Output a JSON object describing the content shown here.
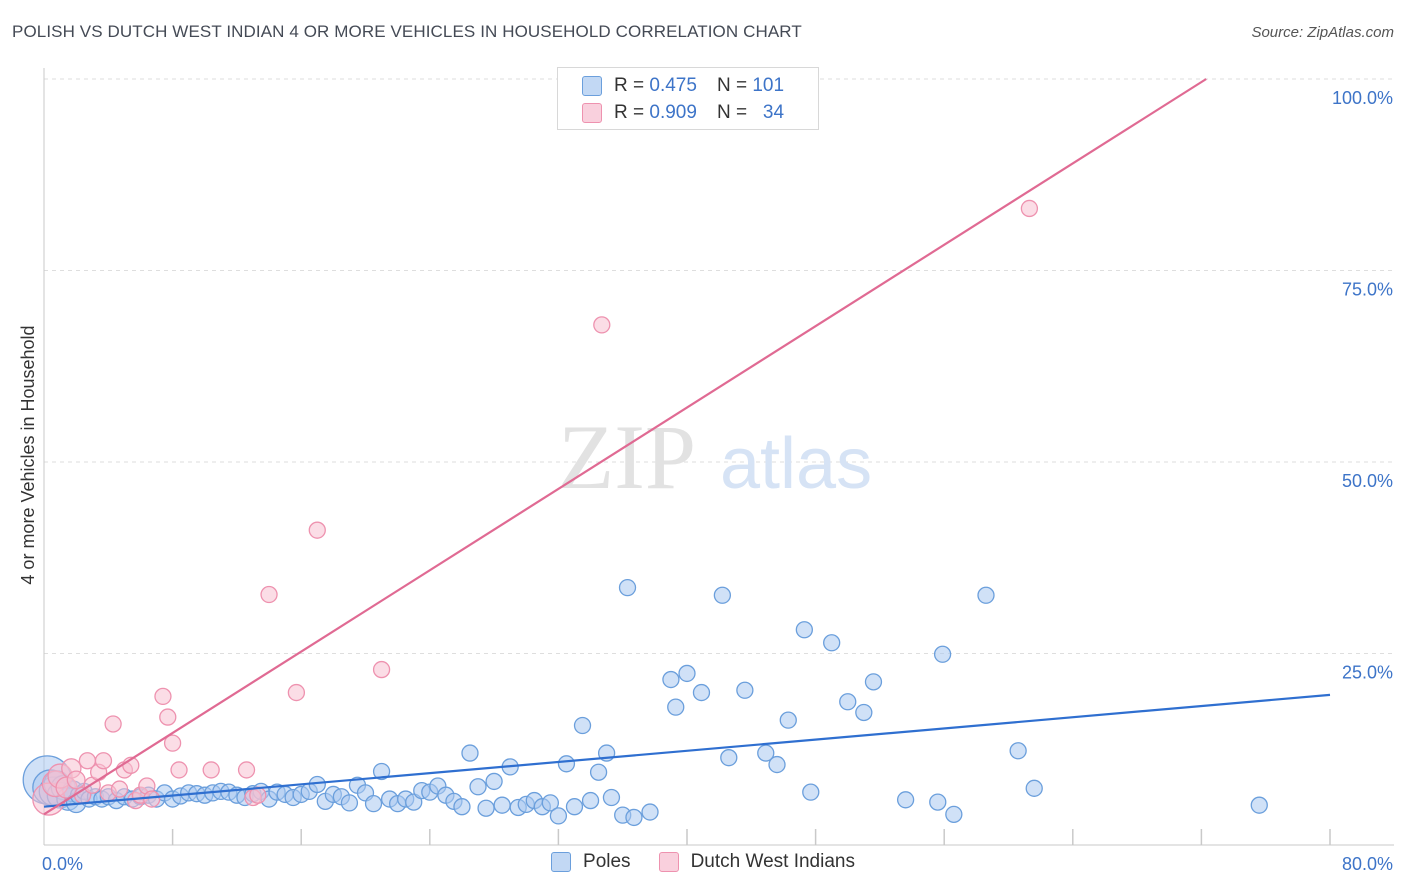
{
  "header": {
    "title": "POLISH VS DUTCH WEST INDIAN 4 OR MORE VEHICLES IN HOUSEHOLD CORRELATION CHART",
    "source": "Source: ZipAtlas.com"
  },
  "watermark": {
    "zip": "ZIP",
    "atlas": "atlas"
  },
  "legend_top": [
    {
      "r_label": "R =",
      "r_value": "0.475",
      "n_label": "N =",
      "n_value": "101"
    },
    {
      "r_label": "R =",
      "r_value": "0.909",
      "n_label": "N =",
      "n_value": "34"
    }
  ],
  "colors": {
    "poles_fill": "#a9c8f0",
    "poles_stroke": "#6b9fdc",
    "poles_line": "#2f6fd0",
    "dwi_fill": "#f8c1d2",
    "dwi_stroke": "#ee92af",
    "dwi_line": "#e06a93",
    "grid": "#dedede",
    "tick_label": "#3d74c8"
  },
  "chart_data": {
    "type": "scatter",
    "title": "POLISH VS DUTCH WEST INDIAN 4 OR MORE VEHICLES IN HOUSEHOLD CORRELATION CHART",
    "xlabel": "",
    "ylabel": "4 or more Vehicles in Household",
    "xlim": [
      0,
      80
    ],
    "ylim": [
      0,
      100
    ],
    "x_tick_labels": [
      "0.0%",
      "80.0%"
    ],
    "y_ticks": [
      25,
      50,
      75,
      100
    ],
    "y_tick_labels": [
      "25.0%",
      "50.0%",
      "75.0%",
      "100.0%"
    ],
    "x_minor_ticks": [
      8,
      16,
      24,
      32,
      40,
      48,
      56,
      64,
      72,
      80
    ],
    "grid": true,
    "legend_position": "bottom",
    "series": [
      {
        "name": "Poles",
        "r": 0.475,
        "n": 101,
        "trend": {
          "x0": 0,
          "y0": 5.0,
          "x1": 80,
          "y1": 19.6
        },
        "points": [
          [
            0.2,
            8.5,
            3
          ],
          [
            0.4,
            7.5,
            2.2
          ],
          [
            0.6,
            7,
            1.8
          ],
          [
            0.8,
            8,
            1.6
          ],
          [
            1.0,
            6.5,
            1.6
          ],
          [
            1.2,
            7.5,
            1.5
          ],
          [
            1.5,
            6.0,
            1.4
          ],
          [
            1.8,
            7.0,
            1.3
          ],
          [
            2.0,
            5.5,
            1.2
          ],
          [
            2.2,
            6.5,
            1.1
          ],
          [
            2.5,
            7.0,
            1
          ],
          [
            2.8,
            6.0,
            1
          ],
          [
            3.2,
            6.3,
            1
          ],
          [
            3.6,
            6.0,
            1
          ],
          [
            4.0,
            6.3,
            1
          ],
          [
            4.5,
            5.8,
            1
          ],
          [
            5.0,
            6.3,
            1
          ],
          [
            5.5,
            6.0,
            1
          ],
          [
            6.0,
            6.3,
            1
          ],
          [
            6.5,
            6.5,
            1
          ],
          [
            7.0,
            6.0,
            1
          ],
          [
            7.5,
            6.8,
            1
          ],
          [
            8.0,
            6.0,
            1
          ],
          [
            8.5,
            6.4,
            1
          ],
          [
            9.0,
            6.8,
            1
          ],
          [
            9.5,
            6.7,
            1
          ],
          [
            10.0,
            6.5,
            1
          ],
          [
            10.5,
            6.8,
            1
          ],
          [
            11.0,
            7.0,
            1
          ],
          [
            11.5,
            6.9,
            1
          ],
          [
            12.0,
            6.5,
            1
          ],
          [
            12.5,
            6.2,
            1
          ],
          [
            13.0,
            6.7,
            1
          ],
          [
            13.5,
            7.0,
            1
          ],
          [
            14.0,
            6.0,
            1
          ],
          [
            14.5,
            6.9,
            1
          ],
          [
            15.0,
            6.6,
            1
          ],
          [
            15.5,
            6.2,
            1
          ],
          [
            16.0,
            6.6,
            1
          ],
          [
            16.5,
            7.0,
            1
          ],
          [
            17.0,
            7.9,
            1
          ],
          [
            17.5,
            5.7,
            1
          ],
          [
            18.0,
            6.6,
            1
          ],
          [
            18.5,
            6.3,
            1
          ],
          [
            19.0,
            5.5,
            1
          ],
          [
            19.5,
            7.8,
            1
          ],
          [
            20.0,
            6.8,
            1
          ],
          [
            20.5,
            5.4,
            1
          ],
          [
            21.0,
            9.6,
            1
          ],
          [
            21.5,
            6.0,
            1
          ],
          [
            22.0,
            5.4,
            1
          ],
          [
            22.5,
            6.0,
            1
          ],
          [
            23.0,
            5.6,
            1
          ],
          [
            23.5,
            7.1,
            1
          ],
          [
            24.0,
            6.9,
            1
          ],
          [
            24.5,
            7.7,
            1
          ],
          [
            25.0,
            6.5,
            1
          ],
          [
            25.5,
            5.7,
            1
          ],
          [
            26.0,
            5.0,
            1
          ],
          [
            26.5,
            12.0,
            1
          ],
          [
            27.0,
            7.6,
            1
          ],
          [
            27.5,
            4.8,
            1
          ],
          [
            28.0,
            8.3,
            1
          ],
          [
            28.5,
            5.2,
            1
          ],
          [
            29.0,
            10.2,
            1
          ],
          [
            29.5,
            4.9,
            1
          ],
          [
            30.0,
            5.3,
            1
          ],
          [
            30.5,
            5.8,
            1
          ],
          [
            31.0,
            5.0,
            1
          ],
          [
            31.5,
            5.5,
            1
          ],
          [
            32.0,
            3.8,
            1
          ],
          [
            32.5,
            10.6,
            1
          ],
          [
            33.0,
            5.0,
            1
          ],
          [
            33.5,
            15.6,
            1
          ],
          [
            34.0,
            5.8,
            1
          ],
          [
            34.5,
            9.5,
            1
          ],
          [
            35.0,
            12.0,
            1
          ],
          [
            35.3,
            6.2,
            1
          ],
          [
            36.0,
            3.9,
            1
          ],
          [
            36.3,
            33.6,
            1
          ],
          [
            36.7,
            3.6,
            1
          ],
          [
            37.7,
            4.3,
            1
          ],
          [
            39.0,
            21.6,
            1
          ],
          [
            39.3,
            18.0,
            1
          ],
          [
            40.0,
            22.4,
            1
          ],
          [
            40.9,
            19.9,
            1
          ],
          [
            42.2,
            32.6,
            1
          ],
          [
            42.6,
            11.4,
            1
          ],
          [
            43.6,
            20.2,
            1
          ],
          [
            44.9,
            12.0,
            1
          ],
          [
            45.6,
            10.5,
            1
          ],
          [
            46.3,
            16.3,
            1
          ],
          [
            47.3,
            28.1,
            1
          ],
          [
            47.7,
            6.9,
            1
          ],
          [
            49.0,
            26.4,
            1
          ],
          [
            50.0,
            18.7,
            1
          ],
          [
            51.0,
            17.3,
            1
          ],
          [
            51.6,
            21.3,
            1
          ],
          [
            53.6,
            5.9,
            1
          ],
          [
            55.6,
            5.6,
            1
          ],
          [
            55.9,
            24.9,
            1
          ],
          [
            56.6,
            4.0,
            1
          ],
          [
            58.6,
            32.6,
            1
          ],
          [
            60.6,
            12.3,
            1
          ],
          [
            61.6,
            7.4,
            1
          ],
          [
            75.6,
            5.2,
            1
          ]
        ]
      },
      {
        "name": "Dutch West Indians",
        "r": 0.909,
        "n": 34,
        "trend": {
          "x0": 0,
          "y0": 4.0,
          "x1": 72.3,
          "y1": 100.0
        },
        "points": [
          [
            0.3,
            6.0,
            2
          ],
          [
            0.7,
            8.0,
            1.6
          ],
          [
            1.0,
            9.0,
            1.5
          ],
          [
            1.4,
            7.5,
            1.3
          ],
          [
            1.7,
            10.0,
            1.2
          ],
          [
            2.0,
            8.5,
            1.1
          ],
          [
            2.4,
            6.5,
            1
          ],
          [
            2.7,
            11.0,
            1
          ],
          [
            3.0,
            7.8,
            1
          ],
          [
            3.4,
            9.5,
            1
          ],
          [
            3.7,
            11.0,
            1
          ],
          [
            4.0,
            6.8,
            1
          ],
          [
            4.3,
            15.8,
            1
          ],
          [
            4.7,
            7.3,
            1
          ],
          [
            5.0,
            9.8,
            1
          ],
          [
            5.4,
            10.4,
            1
          ],
          [
            5.7,
            5.8,
            1
          ],
          [
            6.0,
            6.5,
            1
          ],
          [
            6.4,
            7.7,
            1
          ],
          [
            6.7,
            6.0,
            1
          ],
          [
            7.4,
            19.4,
            1
          ],
          [
            7.7,
            16.7,
            1
          ],
          [
            8.0,
            13.3,
            1
          ],
          [
            8.4,
            9.8,
            1
          ],
          [
            10.4,
            9.8,
            1
          ],
          [
            12.6,
            9.8,
            1
          ],
          [
            13.0,
            6.2,
            1
          ],
          [
            13.3,
            6.5,
            1
          ],
          [
            14.0,
            32.7,
            1
          ],
          [
            15.7,
            19.9,
            1
          ],
          [
            17.0,
            41.1,
            1
          ],
          [
            21.0,
            22.9,
            1
          ],
          [
            34.7,
            67.9,
            1
          ],
          [
            61.3,
            83.1,
            1
          ]
        ]
      }
    ]
  }
}
